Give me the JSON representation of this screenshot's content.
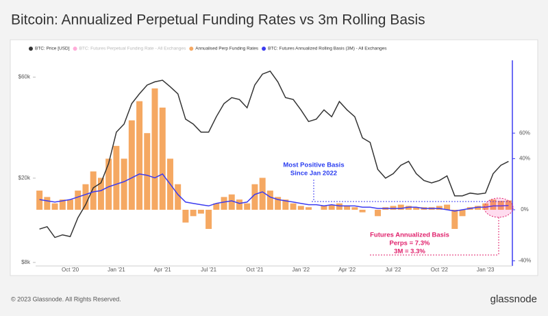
{
  "chart_data": {
    "type": "line",
    "title": "Bitcoin: Annualized Perpetual Funding Rates vs 3m Rolling Basis",
    "footer": "© 2023 Glassnode. All Rights Reserved.",
    "brand": "glassnode",
    "categories": [
      null,
      null,
      null,
      null,
      "Oct '20",
      null,
      null,
      null,
      null,
      null,
      "Jan '21",
      null,
      null,
      null,
      null,
      null,
      "Apr '21",
      null,
      null,
      null,
      null,
      null,
      "Jul '21",
      null,
      null,
      null,
      null,
      null,
      "Oct '21",
      null,
      null,
      null,
      null,
      null,
      "Jan '22",
      null,
      null,
      null,
      null,
      null,
      "Apr '22",
      null,
      null,
      null,
      null,
      null,
      "Jul '22",
      null,
      null,
      null,
      null,
      null,
      "Oct '22",
      null,
      null,
      null,
      null,
      null,
      "Jan '23",
      null,
      null,
      null
    ],
    "log_y": true,
    "ylim": [
      7700,
      72000
    ],
    "yticks": [
      {
        "value": 8000,
        "label": "$8k"
      },
      {
        "value": 20000,
        "label": "$20k"
      },
      {
        "value": 60000,
        "label": "$60k"
      }
    ],
    "y2lim": [
      -44,
      117
    ],
    "y2ticks": [
      {
        "value": -40,
        "label": "-40%"
      },
      {
        "value": 0,
        "label": "0%"
      },
      {
        "value": 40,
        "label": "40%"
      },
      {
        "value": 60,
        "label": "60%"
      }
    ],
    "series": [
      {
        "name": "BTC: Price [USD]",
        "color": "#333333",
        "type": "line",
        "axis": "y",
        "values": [
          11500,
          11800,
          10500,
          10800,
          10600,
          13000,
          15000,
          18000,
          19000,
          23500,
          33000,
          36000,
          45000,
          50000,
          55000,
          57000,
          58000,
          54000,
          50000,
          38000,
          36000,
          33000,
          33000,
          39000,
          45000,
          48000,
          47000,
          43000,
          55000,
          62000,
          64000,
          57000,
          48000,
          47000,
          42000,
          37000,
          38000,
          42000,
          39000,
          46000,
          42000,
          39000,
          31000,
          29500,
          22000,
          20000,
          21000,
          23000,
          24000,
          21000,
          19500,
          19000,
          19500,
          20500,
          16500,
          16500,
          17000,
          16800,
          17000,
          21000,
          23000,
          24000
        ]
      },
      {
        "name": "Annualised Perp Funding Rates",
        "color": "#f5a862",
        "type": "bar",
        "axis": "y2",
        "values": [
          15,
          10,
          5,
          8,
          8,
          15,
          20,
          30,
          25,
          40,
          50,
          40,
          70,
          85,
          60,
          95,
          80,
          40,
          20,
          -10,
          -5,
          -3,
          -15,
          5,
          10,
          12,
          8,
          5,
          20,
          25,
          15,
          10,
          8,
          5,
          3,
          2,
          0,
          3,
          4,
          5,
          3,
          2,
          -2,
          0,
          -5,
          2,
          3,
          4,
          3,
          2,
          2,
          2,
          3,
          4,
          -15,
          -5,
          2,
          3,
          5,
          8,
          7,
          7.3
        ]
      },
      {
        "name": "BTC: Futures Annualized Rolling Basis (3M) - All Exchanges",
        "color": "#3b3bf0",
        "type": "line",
        "axis": "y2",
        "values": [
          8,
          7,
          6,
          7,
          8,
          10,
          12,
          14,
          15,
          18,
          20,
          22,
          25,
          28,
          27,
          25,
          28,
          20,
          12,
          6,
          5,
          4,
          3,
          5,
          6,
          7,
          5,
          6,
          12,
          14,
          10,
          8,
          7,
          6,
          5,
          4,
          4,
          3,
          4,
          3,
          3,
          3,
          2,
          2,
          1,
          1,
          1,
          1,
          2,
          2,
          1,
          1,
          1,
          0,
          -1,
          0,
          1,
          2,
          2,
          3,
          3,
          3.3
        ]
      }
    ],
    "inactive_series": [
      {
        "name": "BTC: Futures Perpetual Funding Rate - All Exchanges",
        "color": "#ff1493"
      }
    ],
    "annotations": [
      {
        "text": "Most Positive Basis",
        "color": "#2a3df0"
      },
      {
        "text": "Since Jan 2022",
        "color": "#2a3df0"
      },
      {
        "text": "Futures Annualized Basis",
        "color": "#e0206b"
      },
      {
        "text": "Perps = 7.3%",
        "color": "#e0206b"
      },
      {
        "text": "3M = 3.3%",
        "color": "#e0206b"
      }
    ]
  }
}
